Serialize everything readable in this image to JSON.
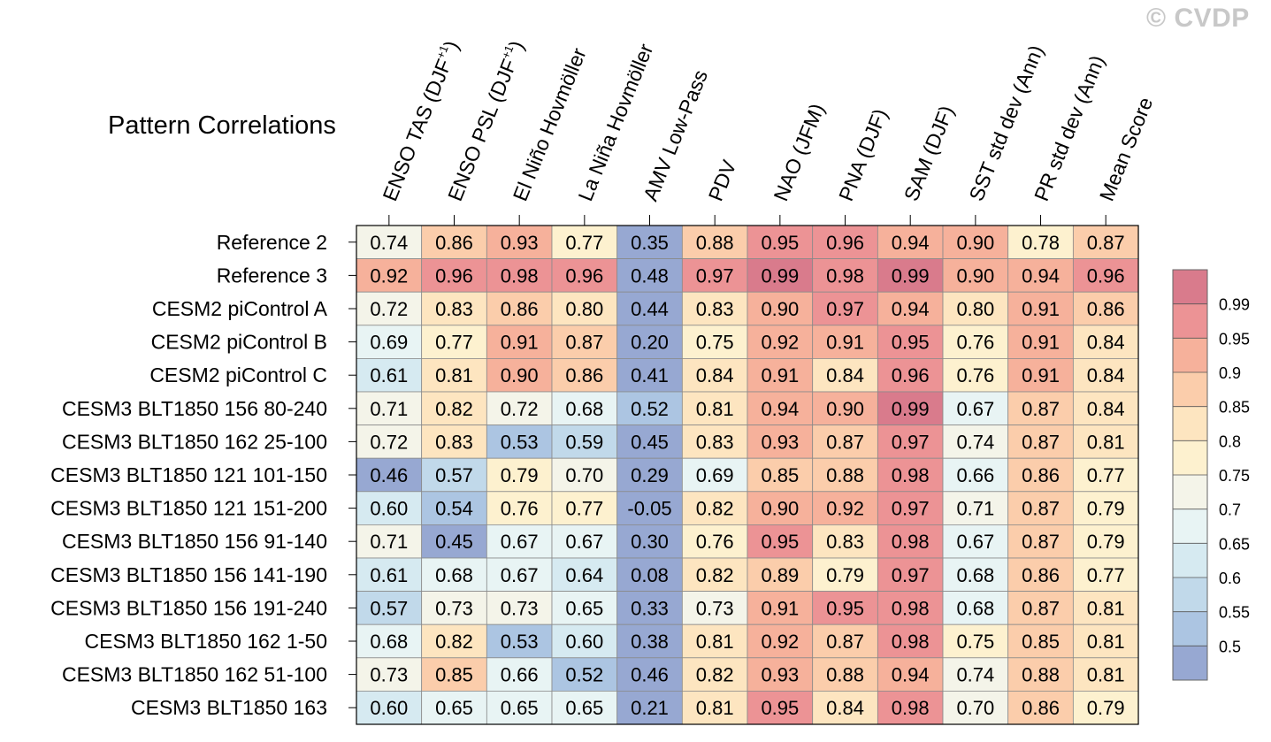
{
  "watermark": "© CVDP",
  "chart_data": {
    "type": "heatmap",
    "title": "Pattern Correlations",
    "columns": [
      {
        "base": "ENSO TAS (DJF",
        "sup": "+1",
        "tail": ")"
      },
      {
        "base": "ENSO PSL (DJF",
        "sup": "+1",
        "tail": ")"
      },
      {
        "base": "El Niño Hovmöller"
      },
      {
        "base": "La Niña Hovmöller"
      },
      {
        "base": "AMV Low-Pass"
      },
      {
        "base": "PDV"
      },
      {
        "base": "NAO (JFM)"
      },
      {
        "base": "PNA (DJF)"
      },
      {
        "base": "SAM (DJF)"
      },
      {
        "base": "SST std dev (Ann)"
      },
      {
        "base": "PR std dev (Ann)"
      },
      {
        "base": "Mean Score"
      }
    ],
    "rows": [
      "Reference 2",
      "Reference 3",
      "CESM2 piControl A",
      "CESM2 piControl B",
      "CESM2 piControl C",
      "CESM3 BLT1850 156 80-240",
      "CESM3 BLT1850 162 25-100",
      "CESM3 BLT1850 121 101-150",
      "CESM3 BLT1850 121 151-200",
      "CESM3 BLT1850 156 91-140",
      "CESM3 BLT1850 156 141-190",
      "CESM3 BLT1850 156 191-240",
      "CESM3 BLT1850 162 1-50",
      "CESM3 BLT1850 162 51-100",
      "CESM3 BLT1850 163"
    ],
    "values": [
      [
        "0.74",
        "0.86",
        "0.93",
        "0.77",
        "0.35",
        "0.88",
        "0.95",
        "0.96",
        "0.94",
        "0.90",
        "0.78",
        "0.87"
      ],
      [
        "0.92",
        "0.96",
        "0.98",
        "0.96",
        "0.48",
        "0.97",
        "0.99",
        "0.98",
        "0.99",
        "0.90",
        "0.94",
        "0.96"
      ],
      [
        "0.72",
        "0.83",
        "0.86",
        "0.80",
        "0.44",
        "0.83",
        "0.90",
        "0.97",
        "0.94",
        "0.80",
        "0.91",
        "0.86"
      ],
      [
        "0.69",
        "0.77",
        "0.91",
        "0.87",
        "0.20",
        "0.75",
        "0.92",
        "0.91",
        "0.95",
        "0.76",
        "0.91",
        "0.84"
      ],
      [
        "0.61",
        "0.81",
        "0.90",
        "0.86",
        "0.41",
        "0.84",
        "0.91",
        "0.84",
        "0.96",
        "0.76",
        "0.91",
        "0.84"
      ],
      [
        "0.71",
        "0.82",
        "0.72",
        "0.68",
        "0.52",
        "0.81",
        "0.94",
        "0.90",
        "0.99",
        "0.67",
        "0.87",
        "0.84"
      ],
      [
        "0.72",
        "0.83",
        "0.53",
        "0.59",
        "0.45",
        "0.83",
        "0.93",
        "0.87",
        "0.97",
        "0.74",
        "0.87",
        "0.81"
      ],
      [
        "0.46",
        "0.57",
        "0.79",
        "0.70",
        "0.29",
        "0.69",
        "0.85",
        "0.88",
        "0.98",
        "0.66",
        "0.86",
        "0.77"
      ],
      [
        "0.60",
        "0.54",
        "0.76",
        "0.77",
        "-0.05",
        "0.82",
        "0.90",
        "0.92",
        "0.97",
        "0.71",
        "0.87",
        "0.79"
      ],
      [
        "0.71",
        "0.45",
        "0.67",
        "0.67",
        "0.30",
        "0.76",
        "0.95",
        "0.83",
        "0.98",
        "0.67",
        "0.87",
        "0.79"
      ],
      [
        "0.61",
        "0.68",
        "0.67",
        "0.64",
        "0.08",
        "0.82",
        "0.89",
        "0.79",
        "0.97",
        "0.68",
        "0.86",
        "0.77"
      ],
      [
        "0.57",
        "0.73",
        "0.73",
        "0.65",
        "0.33",
        "0.73",
        "0.91",
        "0.95",
        "0.98",
        "0.68",
        "0.87",
        "0.81"
      ],
      [
        "0.68",
        "0.82",
        "0.53",
        "0.60",
        "0.38",
        "0.81",
        "0.92",
        "0.87",
        "0.98",
        "0.75",
        "0.85",
        "0.81"
      ],
      [
        "0.73",
        "0.85",
        "0.66",
        "0.52",
        "0.46",
        "0.82",
        "0.93",
        "0.88",
        "0.94",
        "0.74",
        "0.88",
        "0.81"
      ],
      [
        "0.60",
        "0.65",
        "0.65",
        "0.65",
        "0.21",
        "0.81",
        "0.95",
        "0.84",
        "0.98",
        "0.70",
        "0.86",
        "0.79"
      ]
    ],
    "colorbar": {
      "levels": [
        0.5,
        0.55,
        0.6,
        0.65,
        0.7,
        0.75,
        0.8,
        0.85,
        0.9,
        0.95,
        0.99
      ],
      "labels": [
        "0.5",
        "0.55",
        "0.6",
        "0.65",
        "0.7",
        "0.75",
        "0.8",
        "0.85",
        "0.9",
        "0.95",
        "0.99"
      ],
      "colors": [
        "#97a8d2",
        "#acc5e2",
        "#c1d9ea",
        "#d6eaf1",
        "#e8f4f4",
        "#f4f4e9",
        "#fdf1cf",
        "#fde5c0",
        "#fbcdab",
        "#f6b19b",
        "#ec9395",
        "#d97b8c"
      ]
    }
  }
}
